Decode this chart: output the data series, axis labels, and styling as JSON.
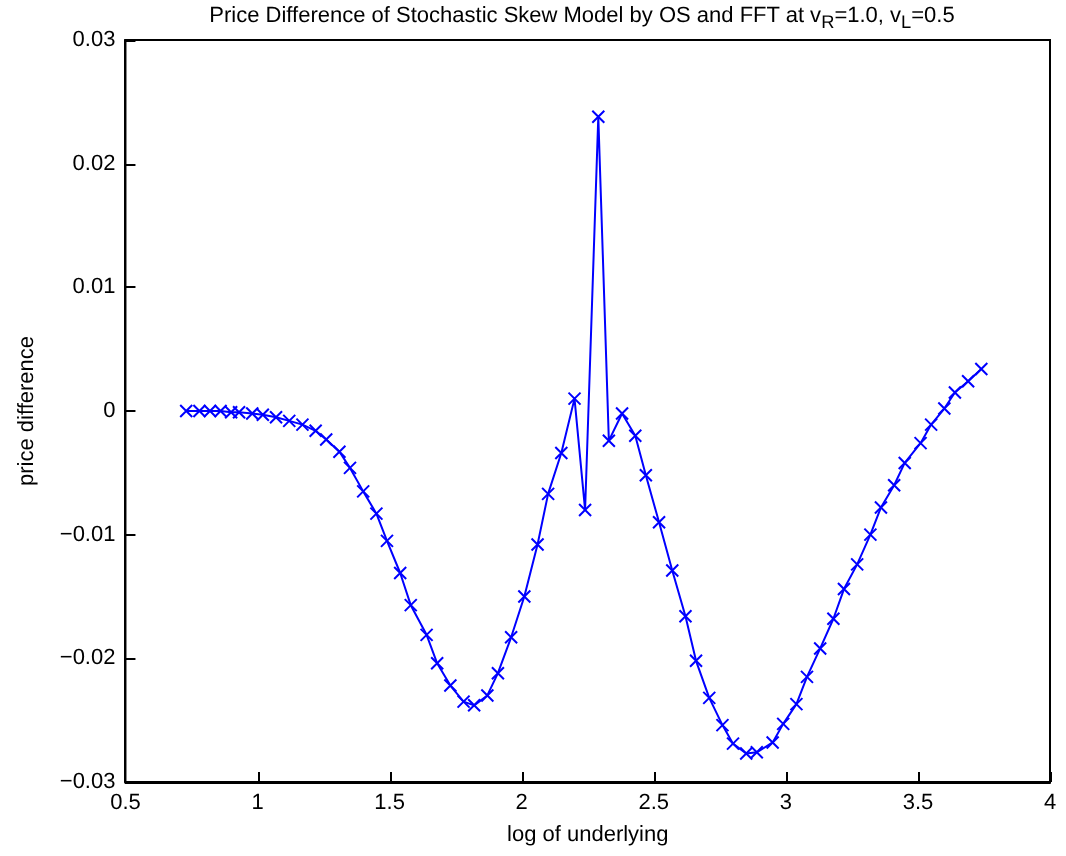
{
  "chart_data": {
    "type": "line",
    "title": "Price Difference of Stochastic Skew Model by OS and FFT at v$_{R}$=1.0, v$_{L}$=0.5",
    "xlabel": "log of underlying",
    "ylabel": "price difference",
    "xlim": [
      0.5,
      4
    ],
    "xticks": [
      0.5,
      1,
      1.5,
      2,
      2.5,
      3,
      3.5,
      4
    ],
    "ylim": [
      -0.03,
      0.03
    ],
    "yticks": [
      -0.03,
      -0.02,
      -0.01,
      0,
      0.01,
      0.02,
      0.03
    ],
    "grid": false,
    "marker": "cross",
    "line_style": "solid",
    "series": [
      {
        "color": "#0000ff",
        "x": [
          0.73,
          0.78,
          0.82,
          0.86,
          0.9,
          0.93,
          0.98,
          1.02,
          1.07,
          1.12,
          1.17,
          1.22,
          1.26,
          1.31,
          1.35,
          1.4,
          1.45,
          1.49,
          1.54,
          1.58,
          1.64,
          1.68,
          1.73,
          1.78,
          1.82,
          1.87,
          1.91,
          1.96,
          2.01,
          2.06,
          2.1,
          2.15,
          2.2,
          2.24,
          2.29,
          2.33,
          2.38,
          2.43,
          2.47,
          2.52,
          2.57,
          2.62,
          2.66,
          2.71,
          2.76,
          2.8,
          2.85,
          2.89,
          2.95,
          2.99,
          3.04,
          3.08,
          3.13,
          3.18,
          3.22,
          3.27,
          3.32,
          3.36,
          3.41,
          3.45,
          3.51,
          3.55,
          3.6,
          3.64,
          3.69,
          3.74
        ],
        "values": [
          0.0,
          0.0,
          0.0,
          0.0,
          -0.0001,
          -0.0001,
          -0.0002,
          -0.0003,
          -0.0005,
          -0.0008,
          -0.0011,
          -0.0016,
          -0.0023,
          -0.0033,
          -0.0046,
          -0.0065,
          -0.0083,
          -0.0105,
          -0.0131,
          -0.0157,
          -0.0181,
          -0.0204,
          -0.0222,
          -0.0235,
          -0.0238,
          -0.023,
          -0.0212,
          -0.0183,
          -0.015,
          -0.0108,
          -0.0067,
          -0.0034,
          0.001,
          -0.008,
          0.0238,
          -0.0024,
          -0.0002,
          -0.002,
          -0.0052,
          -0.009,
          -0.0129,
          -0.0166,
          -0.0202,
          -0.0232,
          -0.0254,
          -0.0269,
          -0.0277,
          -0.0276,
          -0.0268,
          -0.0253,
          -0.0237,
          -0.0215,
          -0.0192,
          -0.0168,
          -0.0144,
          -0.0124,
          -0.01,
          -0.0078,
          -0.006,
          -0.0042,
          -0.0026,
          -0.0011,
          0.0002,
          0.0015,
          0.0024,
          0.0034
        ]
      }
    ]
  }
}
